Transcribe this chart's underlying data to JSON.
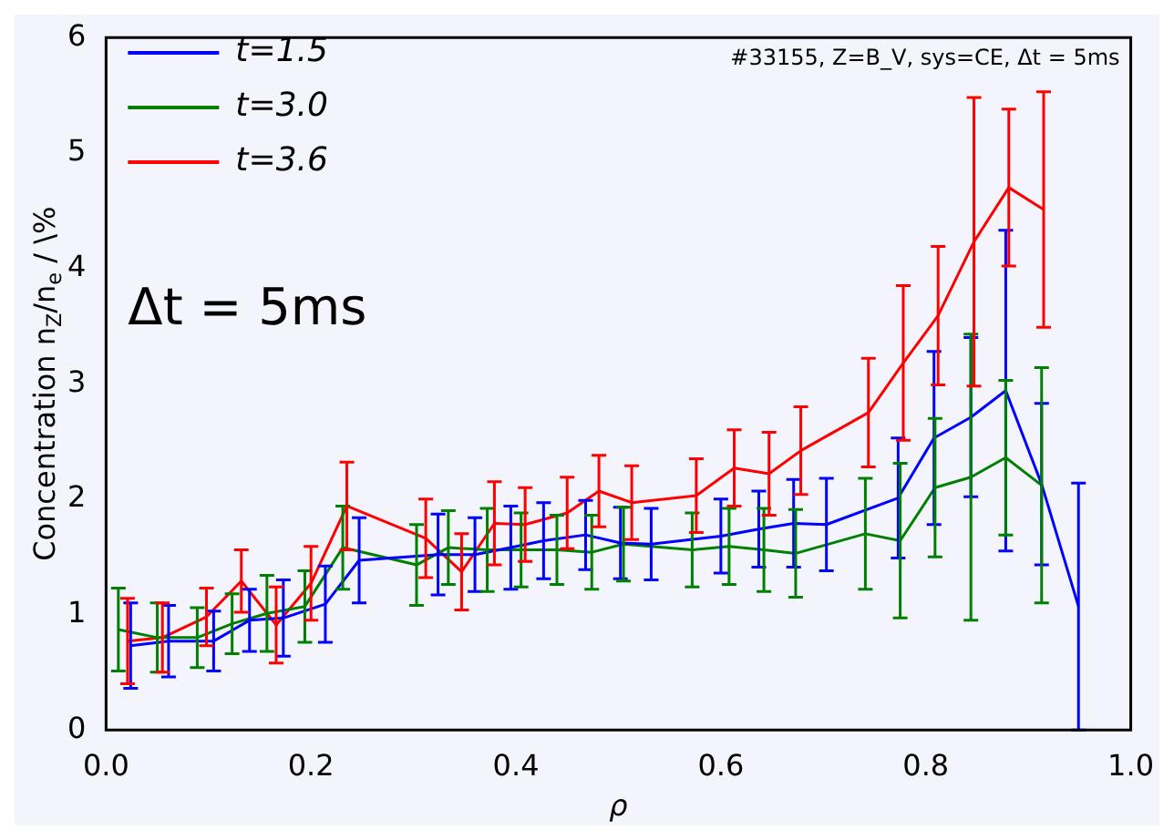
{
  "chart_data": {
    "type": "line",
    "xlabel": "ρ",
    "ylabel": "Concentration n$_{Z}$/n$_{e}$ / \\%",
    "annotations": [
      "#33155, Z=B_V, sys=CE, Δt = 5ms",
      "Δt = 5ms"
    ],
    "xlim": [
      0,
      1
    ],
    "xticks": [
      {
        "value": 0,
        "label": "0.0"
      },
      {
        "value": 0.2,
        "label": "0.2"
      },
      {
        "value": 0.4,
        "label": "0.4"
      },
      {
        "value": 0.6,
        "label": "0.6"
      },
      {
        "value": 0.8,
        "label": "0.8"
      },
      {
        "value": 1,
        "label": "1.0"
      }
    ],
    "ylim": [
      0,
      6
    ],
    "yticks": [
      0,
      1,
      2,
      3,
      4,
      5,
      6
    ],
    "grid": false,
    "legend": "top left",
    "marker": "none",
    "line_style": "solid",
    "series": [
      {
        "name": "t=1.5",
        "color": "#0000ff",
        "x": [
          0.024,
          0.061,
          0.105,
          0.14,
          0.173,
          0.214,
          0.247,
          0.324,
          0.36,
          0.395,
          0.427,
          0.468,
          0.502,
          0.532,
          0.6,
          0.637,
          0.671,
          0.703,
          0.773,
          0.808,
          0.844,
          0.878,
          0.913,
          0.949
        ],
        "values": [
          0.73,
          0.77,
          0.77,
          0.95,
          0.97,
          1.09,
          1.47,
          1.52,
          1.52,
          1.58,
          1.64,
          1.69,
          1.62,
          1.61,
          1.68,
          1.74,
          1.79,
          1.78,
          2.01,
          2.53,
          2.71,
          2.94,
          2.13,
          1.07
        ],
        "errors": [
          0.37,
          0.31,
          0.26,
          0.27,
          0.33,
          0.33,
          0.37,
          0.35,
          0.32,
          0.36,
          0.33,
          0.3,
          0.31,
          0.31,
          0.32,
          0.33,
          0.38,
          0.4,
          0.52,
          0.75,
          0.69,
          1.39,
          0.7,
          1.07
        ]
      },
      {
        "name": "t=3.0",
        "color": "#008000",
        "x": [
          0.012,
          0.05,
          0.089,
          0.123,
          0.157,
          0.194,
          0.231,
          0.303,
          0.334,
          0.372,
          0.405,
          0.44,
          0.474,
          0.505,
          0.572,
          0.608,
          0.642,
          0.673,
          0.741,
          0.775,
          0.809,
          0.844,
          0.878,
          0.913
        ],
        "values": [
          0.87,
          0.8,
          0.8,
          0.92,
          1.01,
          1.07,
          1.58,
          1.43,
          1.58,
          1.56,
          1.56,
          1.56,
          1.54,
          1.61,
          1.56,
          1.59,
          1.56,
          1.53,
          1.7,
          1.64,
          2.1,
          2.19,
          2.36,
          2.12
        ],
        "errors": [
          0.36,
          0.3,
          0.26,
          0.26,
          0.33,
          0.31,
          0.36,
          0.35,
          0.32,
          0.36,
          0.32,
          0.3,
          0.32,
          0.32,
          0.32,
          0.33,
          0.36,
          0.38,
          0.48,
          0.67,
          0.6,
          1.24,
          0.67,
          1.02
        ]
      },
      {
        "name": "t=3.6",
        "color": "#ff0000",
        "x": [
          0.021,
          0.055,
          0.098,
          0.132,
          0.166,
          0.2,
          0.235,
          0.312,
          0.347,
          0.379,
          0.409,
          0.45,
          0.481,
          0.513,
          0.576,
          0.613,
          0.647,
          0.678,
          0.744,
          0.778,
          0.812,
          0.847,
          0.881,
          0.915
        ],
        "values": [
          0.77,
          0.8,
          0.98,
          1.29,
          0.91,
          1.27,
          1.94,
          1.66,
          1.37,
          1.79,
          1.78,
          1.88,
          2.07,
          1.97,
          2.03,
          2.27,
          2.22,
          2.42,
          2.75,
          3.18,
          3.59,
          4.23,
          4.7,
          4.51
        ],
        "errors": [
          0.37,
          0.3,
          0.25,
          0.27,
          0.33,
          0.32,
          0.38,
          0.34,
          0.33,
          0.36,
          0.32,
          0.31,
          0.31,
          0.32,
          0.32,
          0.33,
          0.36,
          0.38,
          0.47,
          0.67,
          0.6,
          1.25,
          0.68,
          1.02
        ]
      }
    ]
  }
}
